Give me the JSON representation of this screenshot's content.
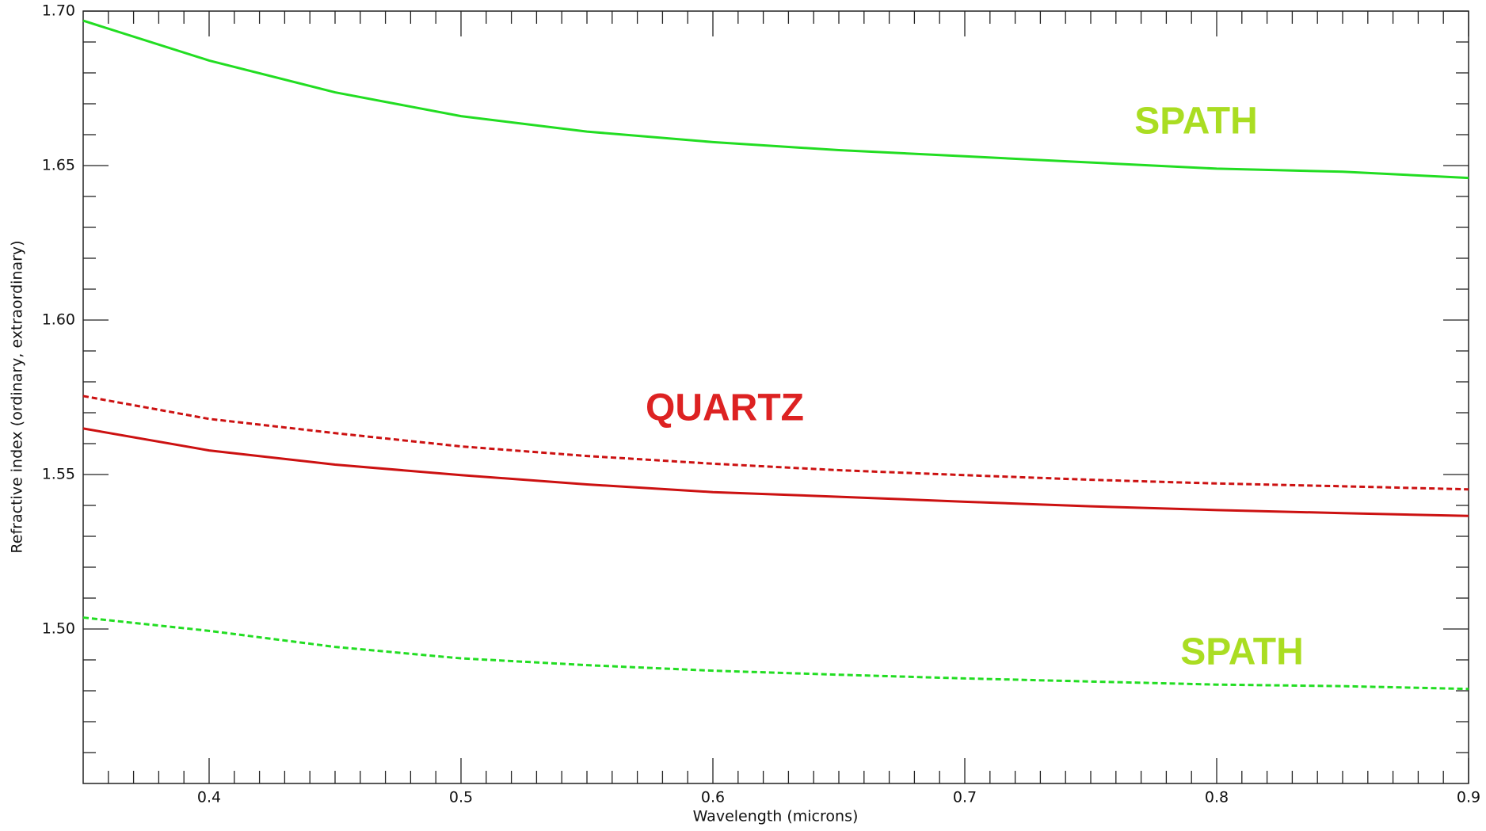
{
  "chart_data": {
    "type": "line",
    "xlabel": "Wavelength (microns)",
    "ylabel": "Refractive index (ordinary, extraordinary)",
    "x": [
      0.35,
      0.4,
      0.45,
      0.5,
      0.55,
      0.6,
      0.65,
      0.7,
      0.75,
      0.8,
      0.85,
      0.9
    ],
    "series": [
      {
        "color": "#22dd22",
        "dashed": false,
        "values": [
          1.6969,
          1.684,
          1.6737,
          1.666,
          1.661,
          1.6576,
          1.655,
          1.653,
          1.651,
          1.649,
          1.648,
          1.646
        ]
      },
      {
        "color": "#22dd22",
        "dashed": true,
        "values": [
          1.5037,
          1.4994,
          1.4942,
          1.4905,
          1.4883,
          1.4865,
          1.4852,
          1.484,
          1.483,
          1.482,
          1.4815,
          1.4806
        ]
      },
      {
        "color": "#cc1111",
        "dashed": false,
        "values": [
          1.5649,
          1.5578,
          1.5532,
          1.5498,
          1.5468,
          1.5443,
          1.5428,
          1.5412,
          1.5397,
          1.5385,
          1.5375,
          1.5366
        ]
      },
      {
        "color": "#cc1111",
        "dashed": true,
        "values": [
          1.5754,
          1.568,
          1.5634,
          1.5591,
          1.556,
          1.5535,
          1.5514,
          1.5498,
          1.5483,
          1.5471,
          1.5462,
          1.5452
        ]
      }
    ],
    "annotations": [
      {
        "text": "SPATH",
        "color": "#aadd22"
      },
      {
        "text": "QUARTZ",
        "color": "#dd2222"
      },
      {
        "text": "SPATH",
        "color": "#aadd22"
      }
    ],
    "xlim": [
      0.35,
      0.9
    ],
    "ylim": [
      1.45,
      1.7
    ],
    "xticks": [
      0.4,
      0.5,
      0.6,
      0.7,
      0.8,
      0.9
    ],
    "yticks": [
      {
        "value": 1.5,
        "label": "1.50"
      },
      1.55,
      {
        "value": 1.6,
        "label": "1.60"
      },
      1.65,
      {
        "value": 1.7,
        "label": "1.70"
      }
    ],
    "xminor": 0.01,
    "yminor": 0.01
  }
}
